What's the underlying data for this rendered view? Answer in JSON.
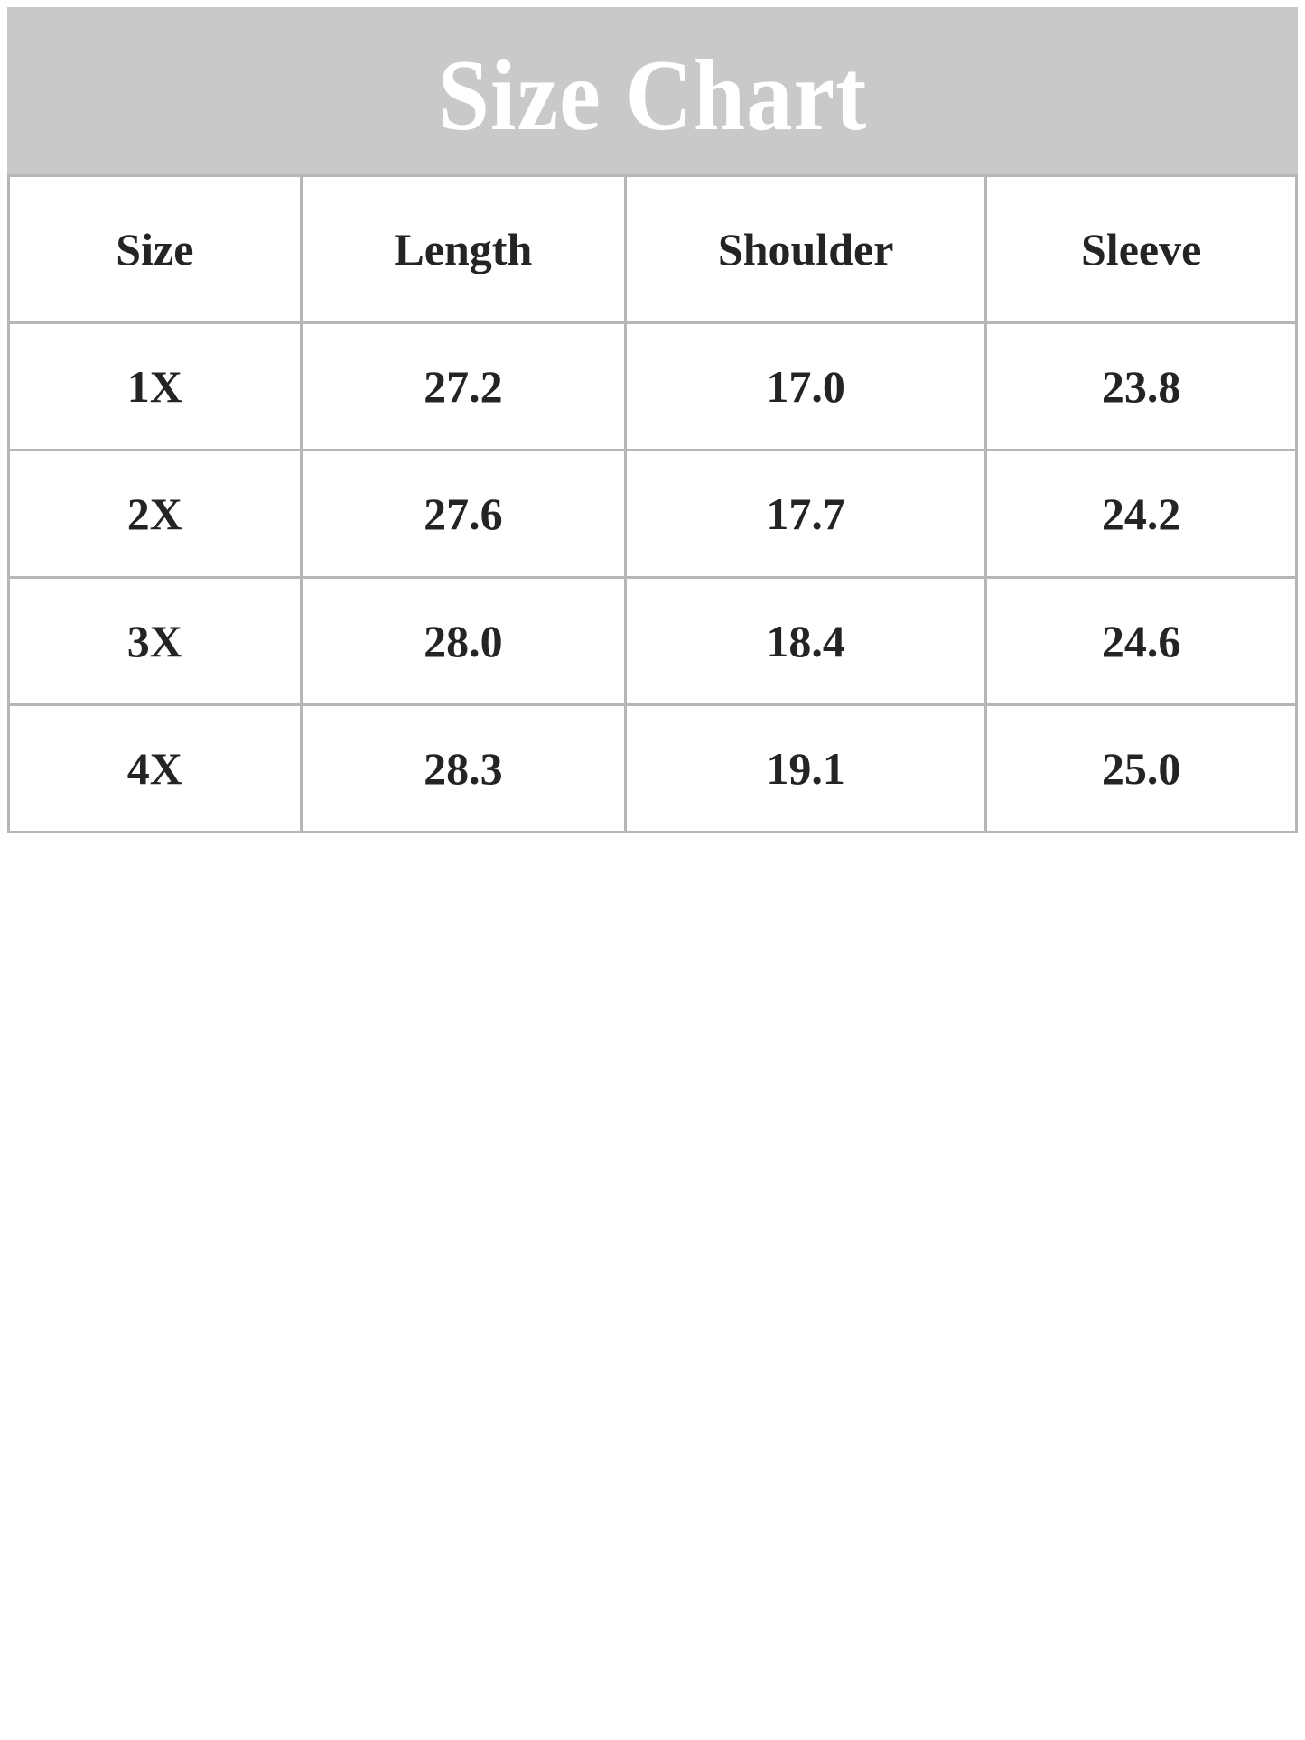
{
  "banner": {
    "title": "Size Chart",
    "background_color": "#c9c9c9",
    "text_color": "#ffffff"
  },
  "table": {
    "border_color": "#b6b6b6",
    "text_color": "#242424",
    "headers": [
      "Size",
      "Length",
      "Shoulder",
      "Sleeve"
    ],
    "rows": [
      [
        "1X",
        "27.2",
        "17.0",
        "23.8"
      ],
      [
        "2X",
        "27.6",
        "17.7",
        "24.2"
      ],
      [
        "3X",
        "28.0",
        "18.4",
        "24.6"
      ],
      [
        "4X",
        "28.3",
        "19.1",
        "25.0"
      ]
    ]
  },
  "chart_data": {
    "type": "table",
    "title": "Size Chart",
    "columns": [
      "Size",
      "Length",
      "Shoulder",
      "Sleeve"
    ],
    "rows": [
      {
        "size": "1X",
        "length": 27.2,
        "shoulder": 17.0,
        "sleeve": 23.8
      },
      {
        "size": "2X",
        "length": 27.6,
        "shoulder": 17.7,
        "sleeve": 24.2
      },
      {
        "size": "3X",
        "length": 28.0,
        "shoulder": 18.4,
        "sleeve": 24.6
      },
      {
        "size": "4X",
        "length": 28.3,
        "shoulder": 19.1,
        "sleeve": 25.0
      }
    ]
  }
}
